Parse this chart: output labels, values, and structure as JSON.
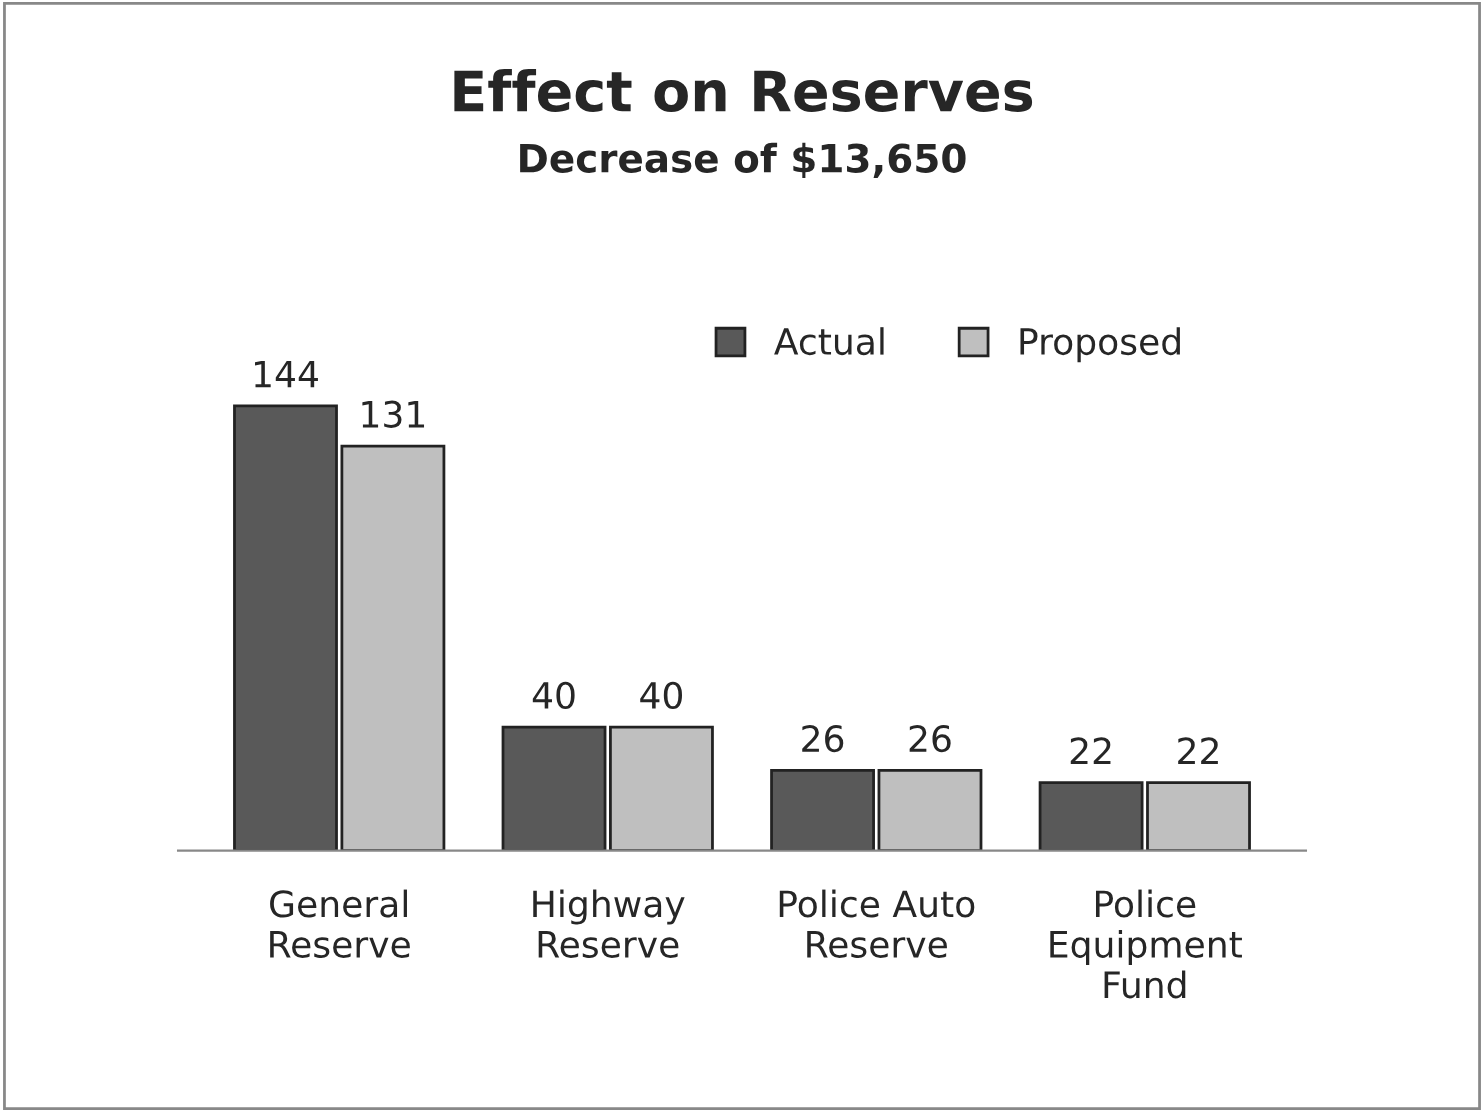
{
  "chart_data": {
    "type": "bar",
    "title": "Effect on Reserves",
    "subtitle": "Decrease of $13,650",
    "categories": [
      "General\nReserve",
      "Highway\nReserve",
      "Police Auto\nReserve",
      "Police\nEquipment\nFund"
    ],
    "series": [
      {
        "name": "Actual",
        "color": "#595959",
        "values": [
          144,
          40,
          26,
          22
        ]
      },
      {
        "name": "Proposed",
        "color": "#bfbfbf",
        "values": [
          131,
          40,
          26,
          22
        ]
      }
    ],
    "data_labels": true,
    "legend": "top right",
    "grid": false,
    "tick_labels": "x"
  }
}
